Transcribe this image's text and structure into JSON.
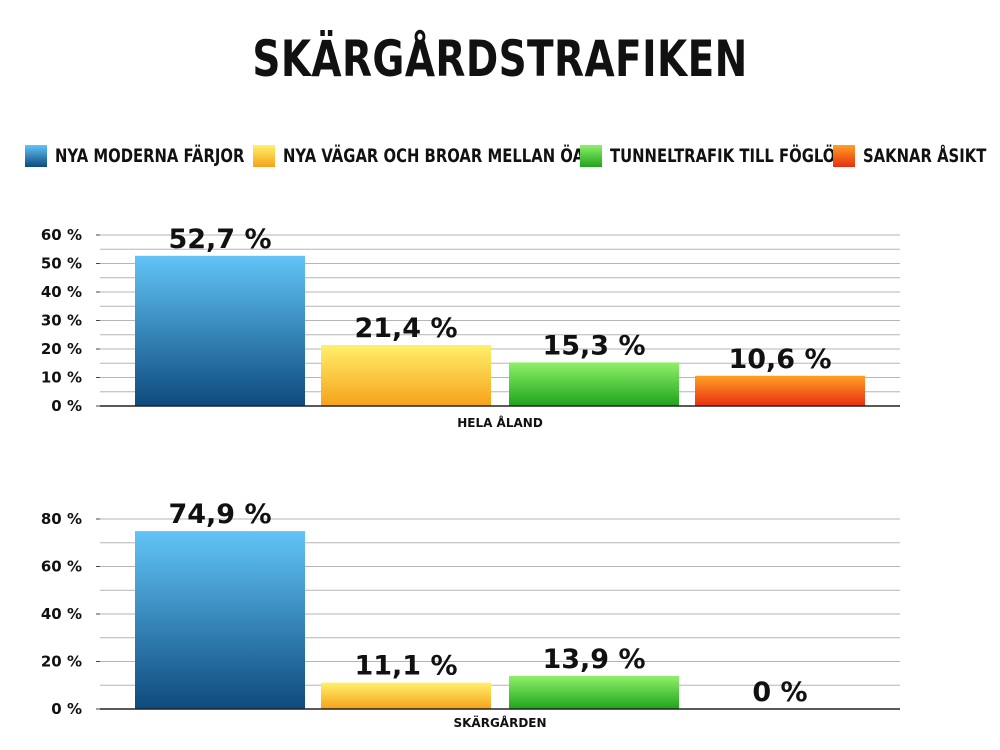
{
  "title": "SKÄRGÅRDSTRAFIKEN",
  "legend": [
    {
      "label": "NYA MODERNA FÄRJOR",
      "colors": [
        "#62c4f7",
        "#0e4a7d"
      ]
    },
    {
      "label": "NYA VÄGAR OCH BROAR MELLAN ÖAR",
      "colors": [
        "#fff06b",
        "#f6a21a"
      ]
    },
    {
      "label": "TUNNELTRAFIK TILL FÖGLÖ",
      "colors": [
        "#8ff06a",
        "#1ea31b"
      ]
    },
    {
      "label": "SAKNAR ÅSIKT",
      "colors": [
        "#ffa025",
        "#e82f10"
      ]
    }
  ],
  "chart_data": [
    {
      "type": "bar",
      "categories": [
        "HELA ÅLAND"
      ],
      "series": [
        {
          "name": "NYA MODERNA FÄRJOR",
          "values": [
            52.7
          ],
          "label": "52,7 %"
        },
        {
          "name": "NYA VÄGAR OCH BROAR MELLAN ÖAR",
          "values": [
            21.4
          ],
          "label": "21,4 %"
        },
        {
          "name": "TUNNELTRAFIK TILL FÖGLÖ",
          "values": [
            15.3
          ],
          "label": "15,3 %"
        },
        {
          "name": "SAKNAR ÅSIKT",
          "values": [
            10.6
          ],
          "label": "10,6 %"
        }
      ],
      "ylim": [
        0,
        60
      ],
      "yticks": [
        "0 %",
        "10 %",
        "20 %",
        "30 %",
        "40 %",
        "50 %",
        "60 %"
      ],
      "grid": true,
      "xlabel": "HELA ÅLAND"
    },
    {
      "type": "bar",
      "categories": [
        "SKÄRGÅRDEN"
      ],
      "series": [
        {
          "name": "NYA MODERNA FÄRJOR",
          "values": [
            74.9
          ],
          "label": "74,9 %"
        },
        {
          "name": "NYA VÄGAR OCH BROAR MELLAN ÖAR",
          "values": [
            11.1
          ],
          "label": "11,1 %"
        },
        {
          "name": "TUNNELTRAFIK TILL FÖGLÖ",
          "values": [
            13.9
          ],
          "label": "13,9 %"
        },
        {
          "name": "SAKNAR ÅSIKT",
          "values": [
            0
          ],
          "label": "0 %"
        }
      ],
      "ylim": [
        0,
        80
      ],
      "yticks": [
        "0 %",
        "20 %",
        "40 %",
        "60 %",
        "80 %"
      ],
      "grid": true,
      "xlabel": "SKÄRGÅRDEN"
    }
  ]
}
